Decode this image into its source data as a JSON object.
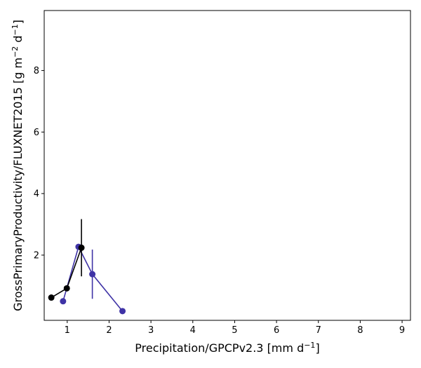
{
  "chart_data": {
    "type": "scatter",
    "title": "",
    "xlabel": {
      "text": "Precipitation/GPCPv2.3 [mm d",
      "sup": "−1",
      "suffix": "]"
    },
    "ylabel": {
      "text": "GrossPrimaryProductivity/FLUXNET2015 [g m",
      "sup1": "−2",
      "mid": " d",
      "sup2": "−1",
      "suffix": "]"
    },
    "xlim": [
      0.45,
      9.2
    ],
    "ylim": [
      -0.12,
      9.95
    ],
    "xticks": [
      1,
      2,
      3,
      4,
      5,
      6,
      7,
      8,
      9
    ],
    "yticks": [
      2,
      4,
      6,
      8
    ],
    "grid": false,
    "series": [
      {
        "color": "#3f33a6",
        "points": [
          {
            "x": 0.9,
            "y": 0.5,
            "err": 0
          },
          {
            "x": 1.27,
            "y": 2.27,
            "err": 0
          },
          {
            "x": 1.6,
            "y": 1.38,
            "err": 0.8
          },
          {
            "x": 2.32,
            "y": 0.18,
            "err": 0
          }
        ]
      },
      {
        "color": "#000000",
        "points": [
          {
            "x": 0.62,
            "y": 0.62,
            "err": 0
          },
          {
            "x": 0.99,
            "y": 0.92,
            "err": 0
          },
          {
            "x": 1.34,
            "y": 2.24,
            "err": 0.93
          }
        ]
      }
    ]
  }
}
